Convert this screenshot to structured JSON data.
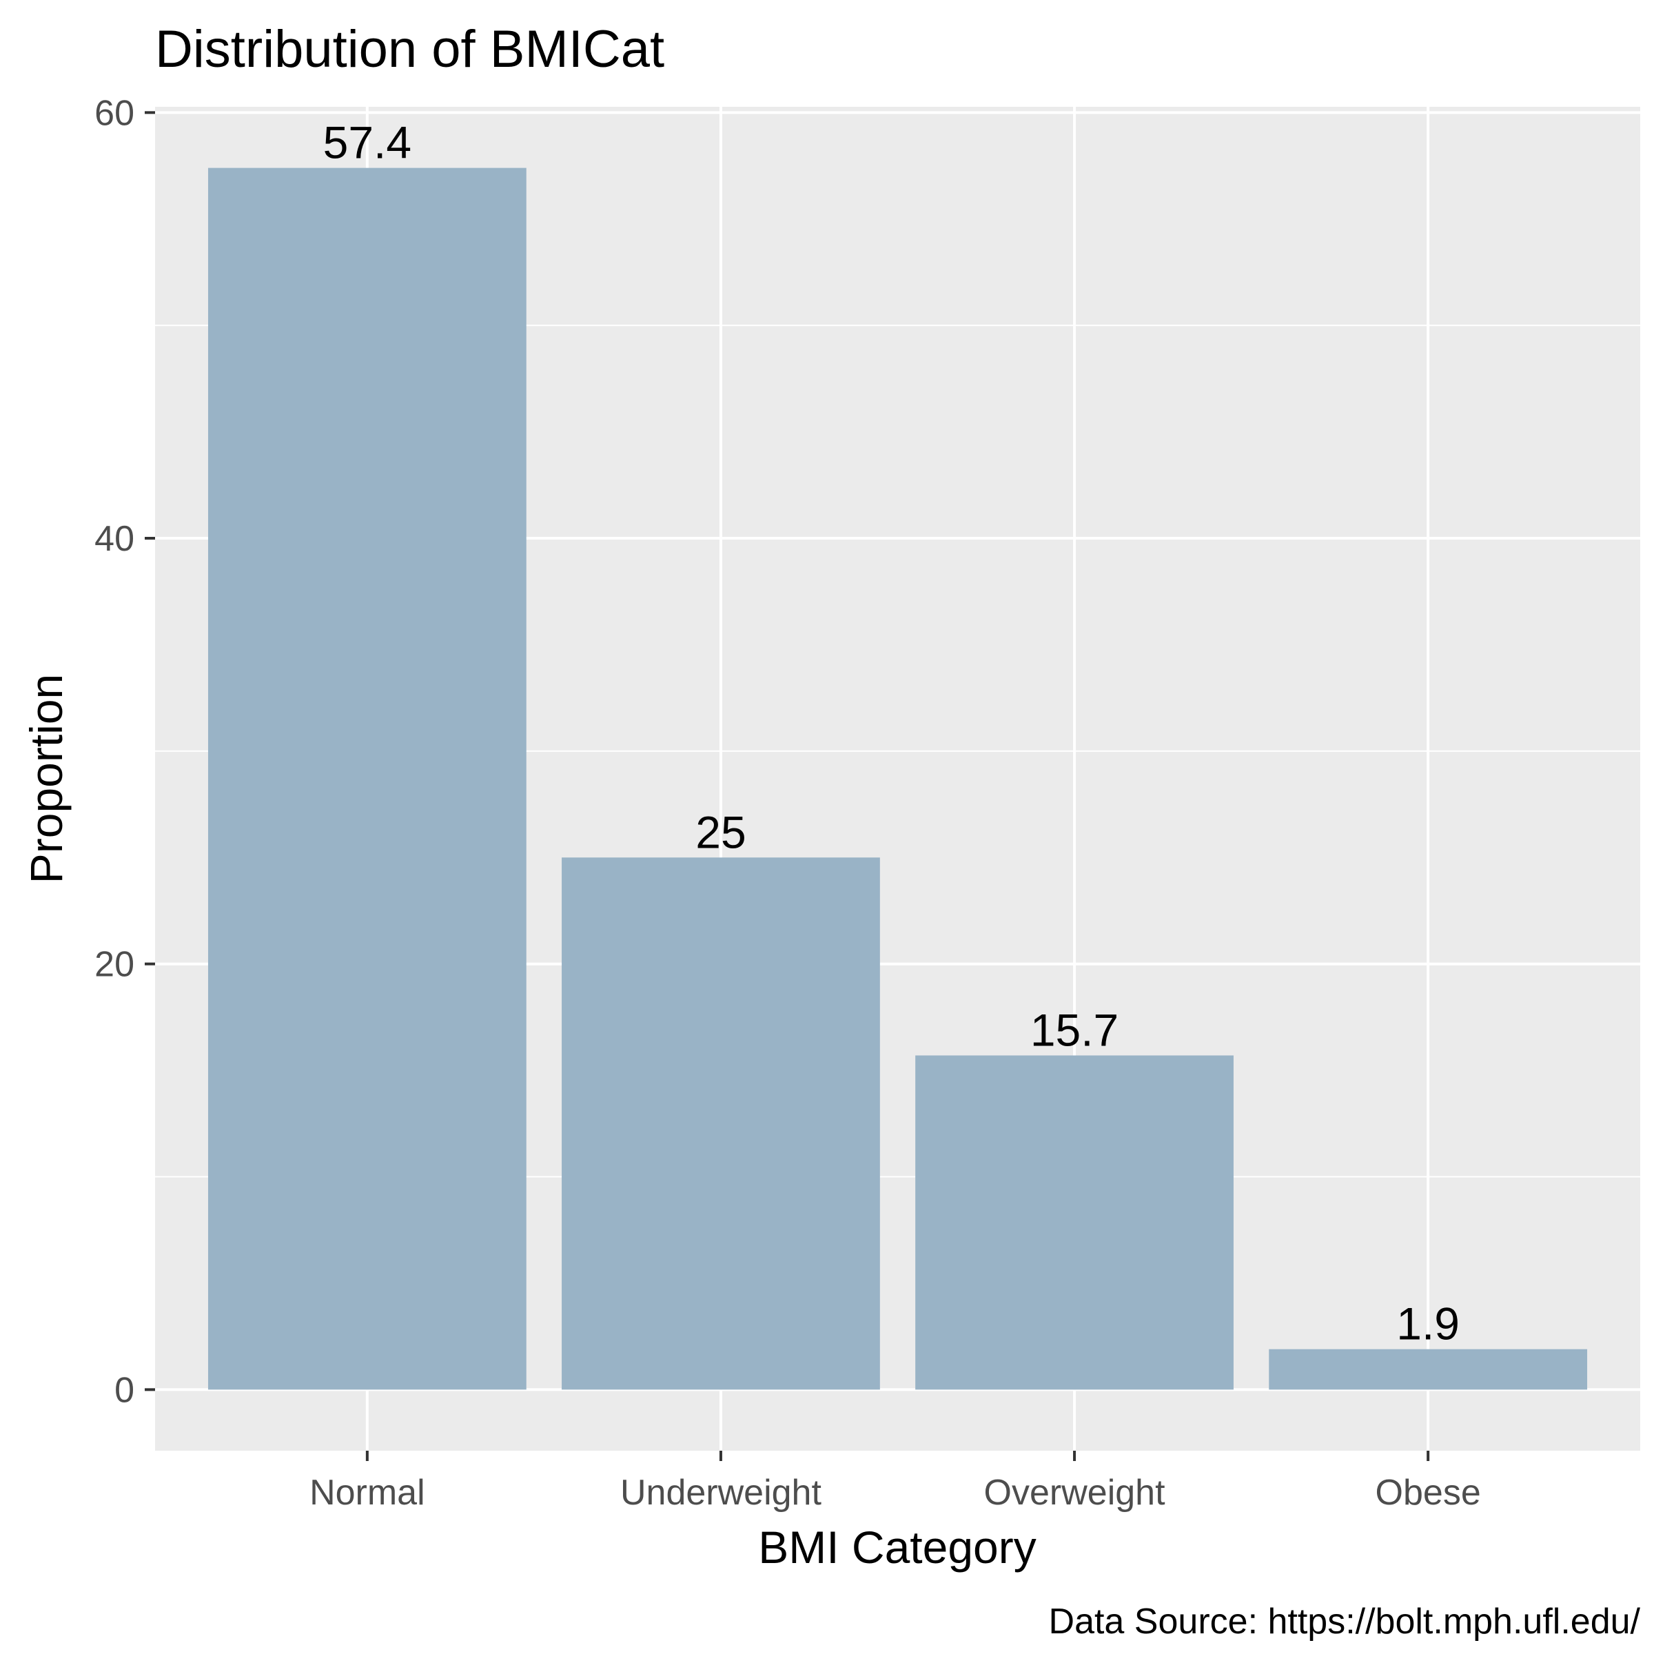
{
  "chart_data": {
    "type": "bar",
    "title": "Distribution of BMICat",
    "xlabel": "BMI Category",
    "ylabel": "Proportion",
    "caption": "Data Source: https://bolt.mph.ufl.edu/",
    "categories": [
      "Normal",
      "Underweight",
      "Overweight",
      "Obese"
    ],
    "values": [
      57.4,
      25,
      15.7,
      1.9
    ],
    "data_labels": [
      "57.4",
      "25",
      "15.7",
      "1.9"
    ],
    "yticks": [
      0,
      20,
      40,
      60
    ],
    "ytick_labels": [
      "0",
      "20",
      "40",
      "60"
    ],
    "ylim": [
      -2.87,
      60.27
    ],
    "grid": true,
    "legend": "none",
    "colors": {
      "bar": "#99b3c6",
      "panel": "#ebebeb",
      "grid": "#ffffff",
      "tick": "#333333"
    }
  }
}
